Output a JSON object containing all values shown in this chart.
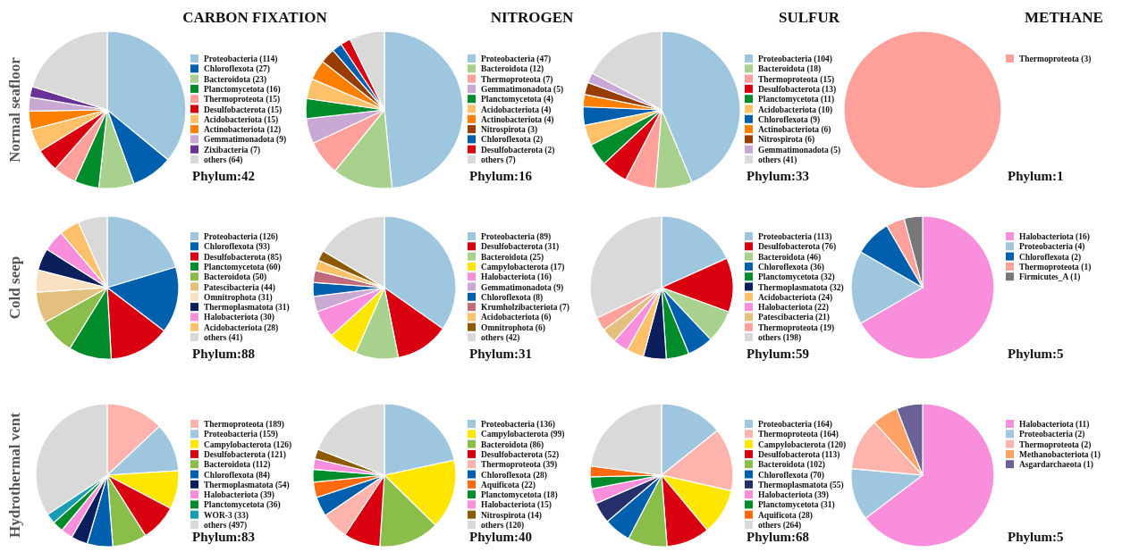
{
  "chart_data": [
    {
      "type": "pie",
      "title": "CARBON FIXATION",
      "ylabel": "Normal seafloor",
      "legend": "right",
      "annotations": [
        "Phylum:42"
      ],
      "categories": [
        "Proteobacteria (114)",
        "Chloroflexota (27)",
        "Bacteroidota (23)",
        "Planctomycetota (16)",
        "Thermoproteota (15)",
        "Desulfobacterota (15)",
        "Acidobacteriota (15)",
        "Actinobacteriota (12)",
        "Gemmatimonadota (9)",
        "Zixibacteria (7)",
        "others (64)"
      ],
      "values": [
        114,
        27,
        23,
        16,
        15,
        15,
        15,
        12,
        9,
        7,
        64
      ],
      "colors": [
        "#9ec6df",
        "#0060ad",
        "#a9d18e",
        "#008c2a",
        "#ffa09a",
        "#d9000f",
        "#ffc06a",
        "#ff7f00",
        "#c9a9d3",
        "#6a3296",
        "#d9d9d9"
      ]
    },
    {
      "type": "pie",
      "title": "NITROGEN",
      "legend": "right",
      "annotations": [
        "Phylum:16"
      ],
      "categories": [
        "Proteobacteria (47)",
        "Bacteroidota (12)",
        "Thermoproteota (7)",
        "Gemmatimonadota (5)",
        "Planctomycetota (4)",
        "Acidobacteriota (4)",
        "Actinobacteriota (4)",
        "Nitrospirota (3)",
        "Chloroflexota (2)",
        "Desulfobacterota (2)",
        "others (7)"
      ],
      "values": [
        47,
        12,
        7,
        5,
        4,
        4,
        4,
        3,
        2,
        2,
        7
      ],
      "colors": [
        "#9ec6df",
        "#a9d18e",
        "#ffa09a",
        "#c9a9d3",
        "#008c2a",
        "#ffc06a",
        "#ff7f00",
        "#983c00",
        "#0060ad",
        "#d9000f",
        "#d9d9d9"
      ]
    },
    {
      "type": "pie",
      "title": "SULFUR",
      "legend": "right",
      "annotations": [
        "Phylum:33"
      ],
      "categories": [
        "Proteobacteria (104)",
        "Bacteroidota (18)",
        "Thermoproteota (15)",
        "Desulfobacterota (13)",
        "Planctomycetota (11)",
        "Acidobacteriota (10)",
        "Chloroflexota (9)",
        "Actinobacteriota (6)",
        "Nitrospirota (6)",
        "Gemmatimonadota (5)",
        "others (41)"
      ],
      "values": [
        104,
        18,
        15,
        13,
        11,
        10,
        9,
        6,
        6,
        5,
        41
      ],
      "colors": [
        "#9ec6df",
        "#a9d18e",
        "#ffa09a",
        "#d9000f",
        "#008c2a",
        "#ffc06a",
        "#0060ad",
        "#ff7f00",
        "#983c00",
        "#c9a9d3",
        "#d9d9d9"
      ]
    },
    {
      "type": "pie",
      "title": "METHANE",
      "legend": "right",
      "annotations": [
        "Phylum:1"
      ],
      "categories": [
        "Thermoproteota (3)"
      ],
      "values": [
        3
      ],
      "colors": [
        "#ffa09a"
      ]
    },
    {
      "type": "pie",
      "ylabel": "Cold seep",
      "legend": "right",
      "annotations": [
        "Phylum:88"
      ],
      "categories": [
        "Proteobacteria (126)",
        "Chloroflexota (93)",
        "Desulfobacterota (85)",
        "Planctomycetota (60)",
        "Bacteroidota (50)",
        "Patescibacteria (44)",
        "Omnitrophota (31)",
        "Thermoplasmatota (31)",
        "Halobacteriota (30)",
        "Acidobacteriota (28)",
        "others (41)"
      ],
      "values": [
        126,
        93,
        85,
        60,
        50,
        44,
        31,
        31,
        30,
        28,
        41
      ],
      "colors": [
        "#9ec6df",
        "#0060ad",
        "#d9000f",
        "#008c2a",
        "#8abd4a",
        "#e3c07e",
        "#f8e0c0",
        "#0a1f5c",
        "#f98fdc",
        "#ffc06a",
        "#d9d9d9"
      ]
    },
    {
      "type": "pie",
      "legend": "right",
      "annotations": [
        "Phylum:31"
      ],
      "categories": [
        "Proteobacteria (89)",
        "Desulfobacterota (31)",
        "Bacteroidota (25)",
        "Campylobacterota (17)",
        "Halobacteriota (16)",
        "Gemmatimonadota (9)",
        "Chloroflexota (8)",
        "Krumholzibacteriota (7)",
        "Acidobacteriota (6)",
        "Omnitrophota (6)",
        "others (42)"
      ],
      "values": [
        89,
        31,
        25,
        17,
        16,
        9,
        8,
        7,
        6,
        6,
        42
      ],
      "colors": [
        "#9ec6df",
        "#d9000f",
        "#a9d18e",
        "#ffe600",
        "#f98fdc",
        "#c9a9d3",
        "#0060ad",
        "#c06a7a",
        "#ffc06a",
        "#8c5a00",
        "#d9d9d9"
      ]
    },
    {
      "type": "pie",
      "legend": "right",
      "annotations": [
        "Phylum:59"
      ],
      "categories": [
        "Proteobacteria (113)",
        "Desulfobacterota (76)",
        "Bacteroidota (46)",
        "Chloroflexota (36)",
        "Planctomycetota (32)",
        "Thermoplasmatota (32)",
        "Acidobacteriota (24)",
        "Halobacteriota (22)",
        "Patescibacteria (21)",
        "Thermoproteota (19)",
        "others (198)"
      ],
      "values": [
        113,
        76,
        46,
        36,
        32,
        32,
        24,
        22,
        21,
        19,
        198
      ],
      "colors": [
        "#9ec6df",
        "#d9000f",
        "#a9d18e",
        "#0060ad",
        "#008c2a",
        "#0a1f5c",
        "#ffc06a",
        "#f98fdc",
        "#e3c07e",
        "#ffa09a",
        "#d9d9d9"
      ]
    },
    {
      "type": "pie",
      "legend": "right",
      "annotations": [
        "Phylum:5"
      ],
      "categories": [
        "Halobacteriota (16)",
        "Proteobacteria (4)",
        "Chloroflexota (2)",
        "Thermoproteota (1)",
        "Firmicutes_A (1)"
      ],
      "values": [
        16,
        4,
        2,
        1,
        1
      ],
      "colors": [
        "#f98fdc",
        "#9ec6df",
        "#0060ad",
        "#ffa09a",
        "#777777"
      ]
    },
    {
      "type": "pie",
      "ylabel": "Hydrothermal vent",
      "legend": "right",
      "annotations": [
        "Phylum:83"
      ],
      "categories": [
        "Thermoproteota (189)",
        "Proteobacteria (159)",
        "Campylobacterota (126)",
        "Desulfobacterota (121)",
        "Bacteroidota (112)",
        "Chloroflexota (84)",
        "Thermoplasmatota (54)",
        "Halobacteriota (39)",
        "Planctomycetota (36)",
        "WOR-3 (33)",
        "others (497)"
      ],
      "values": [
        189,
        159,
        126,
        121,
        112,
        84,
        54,
        39,
        36,
        33,
        497
      ],
      "colors": [
        "#ffb3ad",
        "#9ec6df",
        "#ffe600",
        "#d9000f",
        "#8abd4a",
        "#0060ad",
        "#0a1f5c",
        "#f98fdc",
        "#008c2a",
        "#1a9cb3",
        "#d9d9d9"
      ]
    },
    {
      "type": "pie",
      "legend": "right",
      "annotations": [
        "Phylum:40"
      ],
      "categories": [
        "Proteobacteria (136)",
        "Campylobacterota (99)",
        "Bacteroidota (86)",
        "Desulfobacterota (52)",
        "Thermoproteota (39)",
        "Chloroflexota (28)",
        "Aquificota (22)",
        "Planctomycetota (18)",
        "Halobacteriota (15)",
        "Nitrospirota (14)",
        "others (120)"
      ],
      "values": [
        136,
        99,
        86,
        52,
        39,
        28,
        22,
        18,
        15,
        14,
        120
      ],
      "colors": [
        "#9ec6df",
        "#ffe600",
        "#8abd4a",
        "#d9000f",
        "#ffb3ad",
        "#0060ad",
        "#ff6a10",
        "#008c2a",
        "#f98fdc",
        "#8c5a00",
        "#d9d9d9"
      ]
    },
    {
      "type": "pie",
      "legend": "right",
      "annotations": [
        "Phylum:68"
      ],
      "categories": [
        "Proteobacteria (164)",
        "Thermoproteota (164)",
        "Campylobacterota (120)",
        "Desulfobacterota (113)",
        "Bacteroidota (102)",
        "Chloroflexota (70)",
        "Thermoplasmatota (55)",
        "Halobacteriota (39)",
        "Planctomycetota (31)",
        "Aquificota (28)",
        "others (264)"
      ],
      "values": [
        164,
        164,
        120,
        113,
        102,
        70,
        55,
        39,
        31,
        28,
        264
      ],
      "colors": [
        "#9ec6df",
        "#ffb3ad",
        "#ffe600",
        "#d9000f",
        "#8abd4a",
        "#0060ad",
        "#25306a",
        "#f98fdc",
        "#008c2a",
        "#ff6a10",
        "#d9d9d9"
      ]
    },
    {
      "type": "pie",
      "legend": "right",
      "annotations": [
        "Phylum:5"
      ],
      "categories": [
        "Halobacteriota (11)",
        "Proteobacteria (2)",
        "Thermoproteota (2)",
        "Methanobacteriota (1)",
        "Asgardarchaeota (1)"
      ],
      "values": [
        11,
        2,
        2,
        1,
        1
      ],
      "colors": [
        "#f98fdc",
        "#9ec6df",
        "#ffb3ad",
        "#ffa266",
        "#6a6296"
      ]
    }
  ]
}
